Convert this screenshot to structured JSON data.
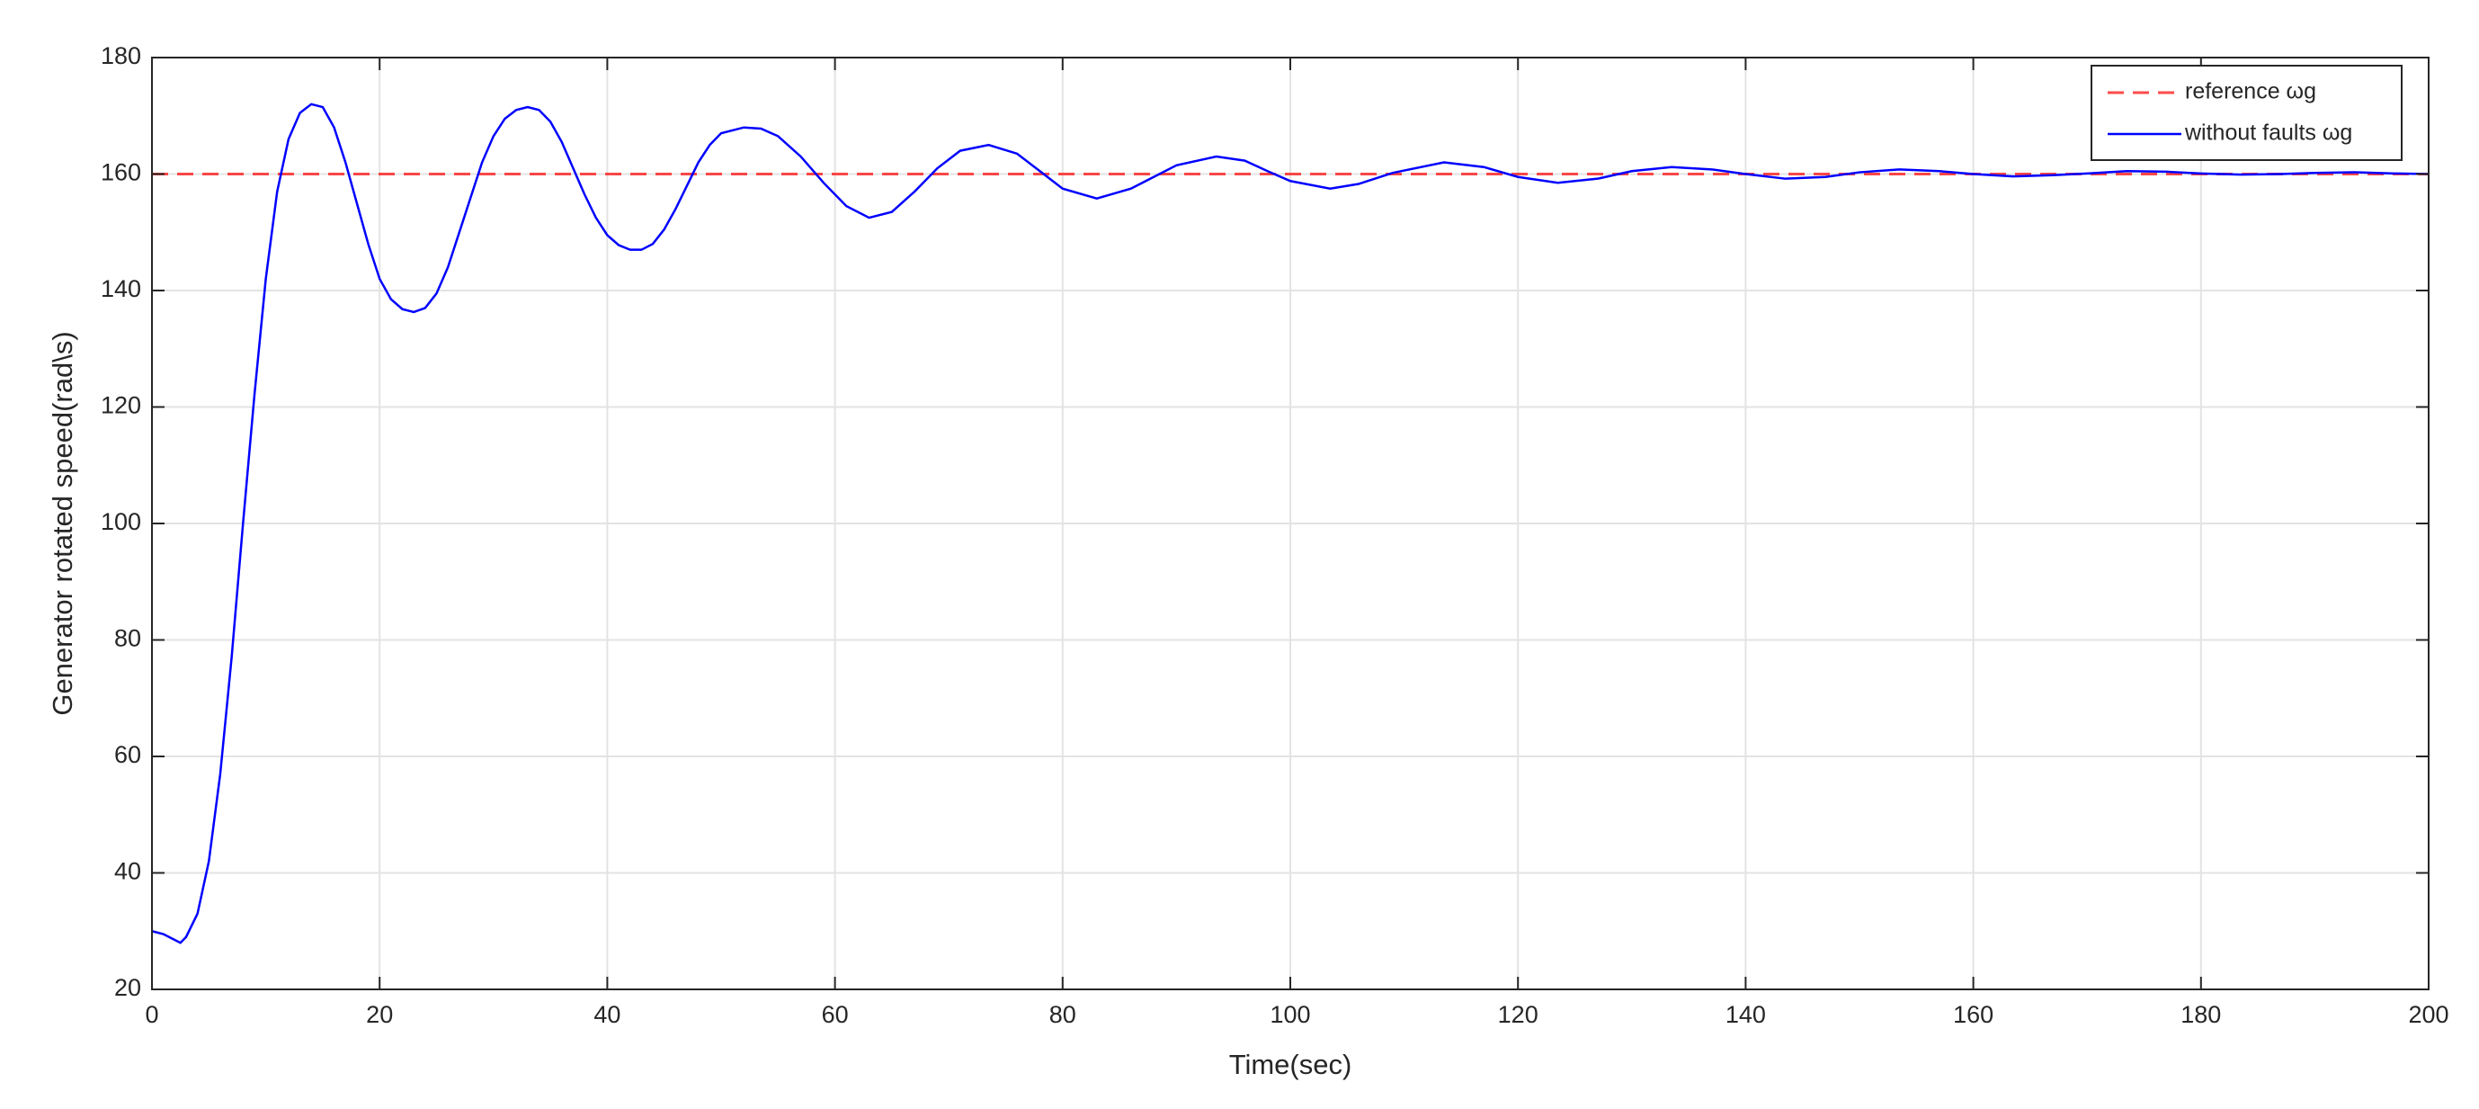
{
  "chart_data": {
    "type": "line",
    "xlabel": "Time(sec)",
    "ylabel": "Generator rotated speed(rad\\s)",
    "xlim": [
      0,
      200
    ],
    "xticks": [
      0,
      20,
      40,
      60,
      80,
      100,
      120,
      140,
      160,
      180,
      200
    ],
    "ylim": [
      20,
      180
    ],
    "yticks": [
      20,
      40,
      60,
      80,
      100,
      120,
      140,
      160,
      180
    ],
    "grid": true,
    "legend": "upper right",
    "series": [
      {
        "name": "reference ωg",
        "color": "#ff0000",
        "dash": true,
        "x": [
          0,
          200
        ],
        "values": [
          160,
          160
        ]
      },
      {
        "name": "without faults ωg",
        "color": "#0000ff",
        "dash": false,
        "x": [
          0,
          1,
          2,
          2.5,
          3,
          4,
          5,
          6,
          7,
          8,
          9,
          10,
          11,
          12,
          13,
          14,
          15,
          16,
          17,
          18,
          19,
          20,
          21,
          22,
          23,
          24,
          25,
          26,
          27,
          28,
          29,
          30,
          31,
          32,
          33,
          34,
          35,
          36,
          37,
          38,
          39,
          40,
          41,
          42,
          43,
          44,
          45,
          46,
          47,
          48,
          49,
          50,
          52,
          53.5,
          55,
          57,
          59,
          61,
          63,
          65,
          67,
          69,
          71,
          73.5,
          76,
          78,
          80,
          83,
          86,
          88,
          90,
          93.5,
          96,
          98,
          100,
          103.5,
          106,
          109,
          113.5,
          117,
          120,
          123.5,
          127,
          130,
          133.5,
          137,
          140,
          143.5,
          147,
          150,
          153.5,
          157,
          160,
          163.5,
          167,
          170,
          173.5,
          177,
          180,
          183.5,
          187,
          190,
          193.5,
          197,
          200
        ],
        "values": [
          30,
          29.5,
          28.5,
          28,
          29,
          33,
          42,
          57,
          77,
          100,
          122,
          142,
          157,
          166,
          170.5,
          172,
          171.5,
          168,
          162,
          155,
          148,
          142,
          138.5,
          136.8,
          136.3,
          137,
          139.5,
          144,
          150,
          156,
          162,
          166.5,
          169.5,
          171,
          171.5,
          171,
          169,
          165.5,
          161,
          156.5,
          152.5,
          149.5,
          147.8,
          147,
          147,
          148,
          150.5,
          154,
          158,
          162,
          165,
          167,
          168,
          167.8,
          166.5,
          163,
          158.5,
          154.5,
          152.5,
          153.5,
          157,
          161,
          164,
          165,
          163.5,
          160.5,
          157.5,
          155.8,
          157.5,
          159.5,
          161.5,
          163,
          162.3,
          160.5,
          158.8,
          157.5,
          158.3,
          160.2,
          162,
          161.2,
          159.5,
          158.5,
          159.2,
          160.5,
          161.2,
          160.8,
          160,
          159.2,
          159.5,
          160.3,
          160.8,
          160.5,
          160,
          159.6,
          159.8,
          160.1,
          160.5,
          160.4,
          160.1,
          159.9,
          160,
          160.2,
          160.3,
          160.1,
          160
        ]
      }
    ]
  }
}
